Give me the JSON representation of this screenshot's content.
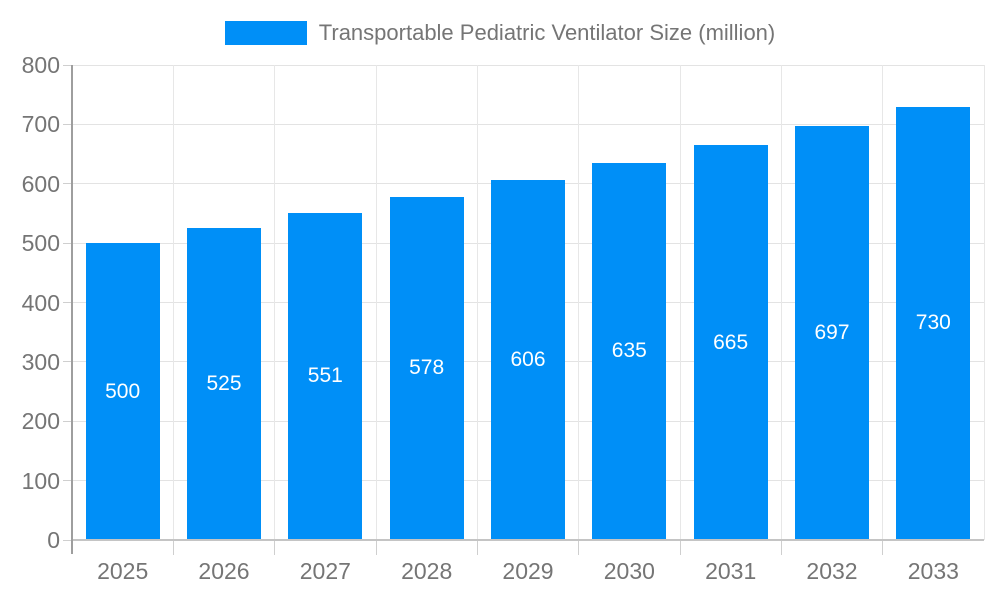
{
  "chart_data": {
    "type": "bar",
    "title": "Transportable Pediatric Ventilator Size (million)",
    "categories": [
      "2025",
      "2026",
      "2027",
      "2028",
      "2029",
      "2030",
      "2031",
      "2032",
      "2033"
    ],
    "values": [
      500,
      525,
      551,
      578,
      606,
      635,
      665,
      697,
      730
    ],
    "xlabel": "",
    "ylabel": "",
    "ylim": [
      0,
      800
    ],
    "ytick_step": 100,
    "grid": true,
    "legend_position": "top-center",
    "colors": {
      "bar": "#008FF7",
      "value_label": "#FFFFFF",
      "axis_text": "#757575",
      "legend_text": "#757575",
      "gridline": "#E3E3E3",
      "axis_line": "#9E9E9E"
    }
  }
}
